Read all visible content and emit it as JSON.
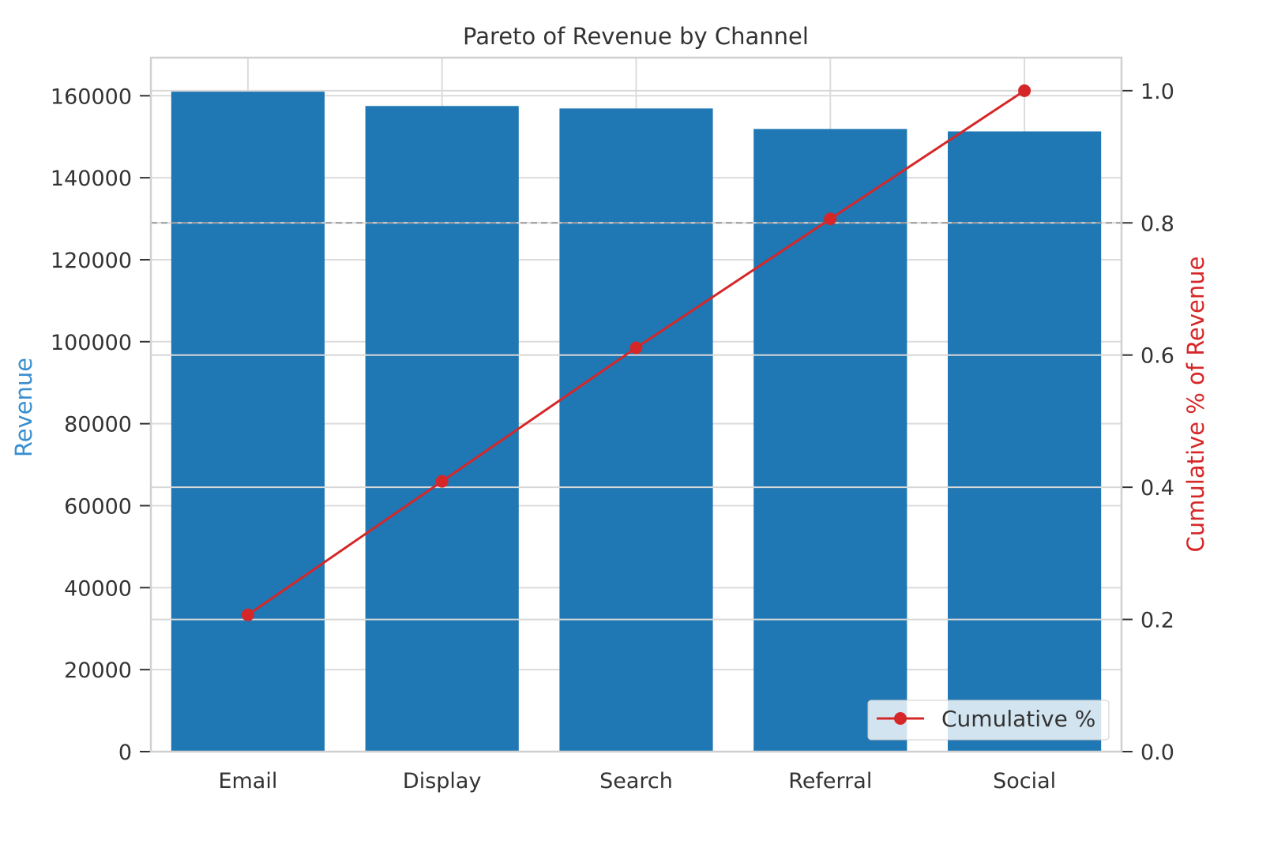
{
  "chart_data": {
    "type": "bar",
    "title": "Pareto of Revenue by Channel",
    "xlabel": "",
    "ylabel": "Revenue",
    "ylabel_right": "Cumulative % of Revenue",
    "categories": [
      "Email",
      "Display",
      "Search",
      "Referral",
      "Social"
    ],
    "series": [
      {
        "type": "bar",
        "axis": "left",
        "values": [
          161000,
          157500,
          156900,
          151900,
          151300
        ],
        "color": "#1f77b4"
      },
      {
        "type": "line",
        "axis": "right",
        "name": "Cumulative %",
        "values": [
          0.207,
          0.409,
          0.611,
          0.806,
          1.0
        ],
        "color": "#d62728",
        "marker": "circle"
      }
    ],
    "ylim": [
      0,
      169300
    ],
    "ylim_right": [
      0,
      1.05
    ],
    "yticks": [
      0,
      20000,
      40000,
      60000,
      80000,
      100000,
      120000,
      140000,
      160000
    ],
    "yticks_right": [
      "0.0",
      "0.2",
      "0.4",
      "0.6",
      "0.8",
      "1.0"
    ],
    "reference_line": {
      "axis": "right",
      "value": 0.8,
      "style": "dashed",
      "color": "#999999"
    },
    "grid": true,
    "legend": {
      "placement": "lower-right",
      "entries": [
        "Cumulative %"
      ]
    },
    "ylabel_color": "#3a8fd0",
    "ylabel_right_color": "#d62728"
  }
}
